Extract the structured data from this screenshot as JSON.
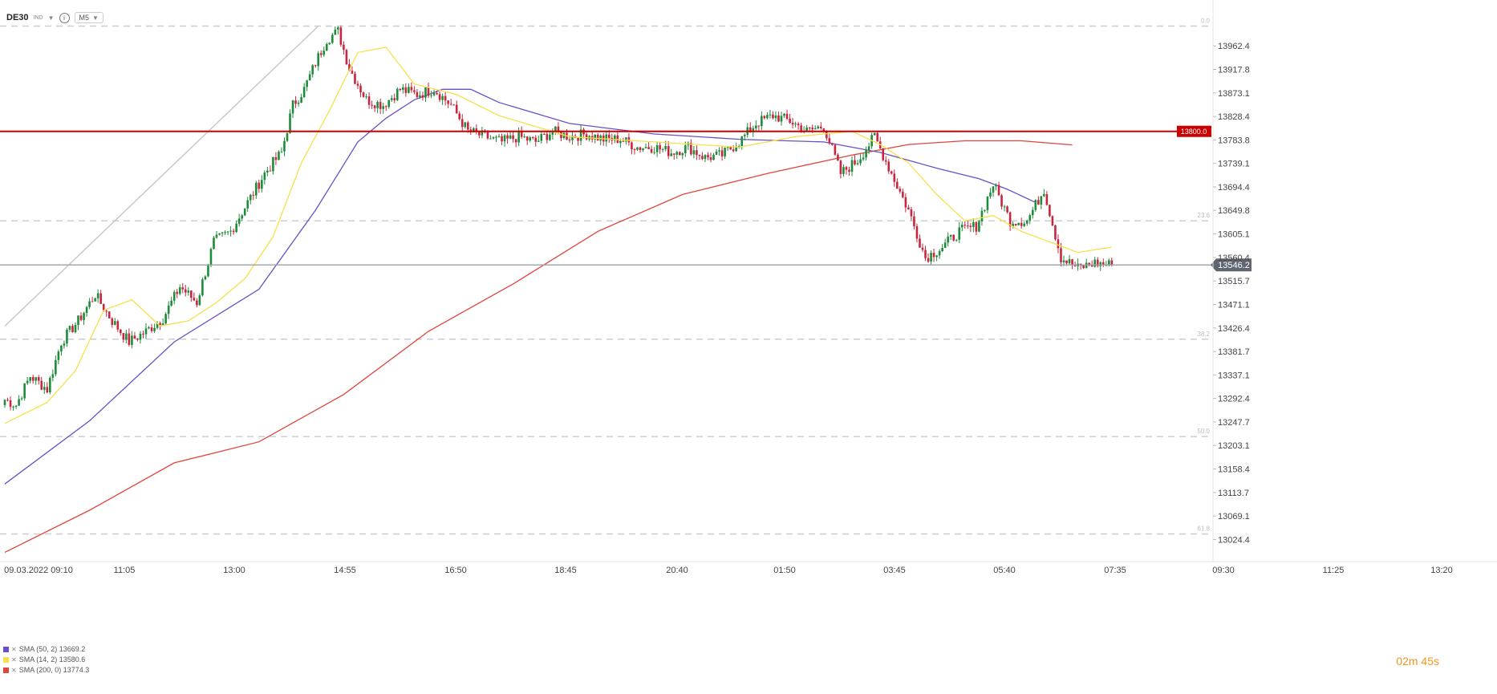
{
  "toolbar": {
    "symbol": "DE30",
    "market": "IND",
    "timeframe": "M5"
  },
  "legend": [
    {
      "label": "SMA (50, 2) 13669.2",
      "color": "#6a4fc6"
    },
    {
      "label": "SMA (14, 2) 13580.6",
      "color": "#f7e04a"
    },
    {
      "label": "SMA (200, 0) 13774.3",
      "color": "#e0443c"
    }
  ],
  "timer": {
    "minutes": "02",
    "m": "m",
    "seconds": "45",
    "s": "s"
  },
  "chart_data": {
    "type": "candlestick",
    "ylim": [
      12990,
      14010
    ],
    "y_ticks": [
      "13962.4",
      "13917.8",
      "13873.1",
      "13828.4",
      "13783.8",
      "13739.1",
      "13694.4",
      "13649.8",
      "13605.1",
      "13560.4",
      "13515.7",
      "13471.1",
      "13426.4",
      "13381.7",
      "13337.1",
      "13292.4",
      "13247.7",
      "13203.1",
      "13158.4",
      "13113.7",
      "13069.1",
      "13024.4"
    ],
    "x_ticks": [
      "09.03.2022  09:10",
      "11:05",
      "13:00",
      "14:55",
      "16:50",
      "18:45",
      "20:40",
      "01:50",
      "03:45",
      "05:40",
      "07:35",
      "09:30",
      "11:25",
      "13:20"
    ],
    "fib_levels": [
      {
        "label": "0.0",
        "value": 14000
      },
      {
        "label": "23.6",
        "value": 13630
      },
      {
        "label": "38.2",
        "value": 13405
      },
      {
        "label": "50.0",
        "value": 13220
      },
      {
        "label": "61.8",
        "value": 13035
      }
    ],
    "horizontal_level": {
      "label": "13800.0",
      "value": 13800,
      "color": "#cc0000"
    },
    "current_price": {
      "label": "13546.2",
      "value": 13546.2
    },
    "trend_line": [
      {
        "i": 0,
        "v": 13430
      },
      {
        "i": 111,
        "v": 14000
      }
    ],
    "candle_colors": {
      "up": "#1e8c3a",
      "down": "#c8263e"
    },
    "close_keys": [
      [
        0,
        13290
      ],
      [
        4,
        13280
      ],
      [
        9,
        13335
      ],
      [
        15,
        13310
      ],
      [
        20,
        13400
      ],
      [
        26,
        13440
      ],
      [
        32,
        13490
      ],
      [
        38,
        13440
      ],
      [
        44,
        13400
      ],
      [
        50,
        13420
      ],
      [
        56,
        13445
      ],
      [
        62,
        13505
      ],
      [
        68,
        13475
      ],
      [
        74,
        13590
      ],
      [
        80,
        13610
      ],
      [
        86,
        13665
      ],
      [
        92,
        13720
      ],
      [
        98,
        13760
      ],
      [
        102,
        13850
      ],
      [
        106,
        13880
      ],
      [
        110,
        13930
      ],
      [
        114,
        13975
      ],
      [
        118,
        13990
      ],
      [
        122,
        13920
      ],
      [
        128,
        13860
      ],
      [
        134,
        13850
      ],
      [
        140,
        13880
      ],
      [
        146,
        13870
      ],
      [
        152,
        13880
      ],
      [
        158,
        13850
      ],
      [
        164,
        13800
      ],
      [
        170,
        13790
      ],
      [
        176,
        13780
      ],
      [
        182,
        13790
      ],
      [
        188,
        13780
      ],
      [
        194,
        13800
      ],
      [
        200,
        13790
      ],
      [
        206,
        13795
      ],
      [
        212,
        13785
      ],
      [
        218,
        13785
      ],
      [
        224,
        13770
      ],
      [
        230,
        13770
      ],
      [
        236,
        13760
      ],
      [
        242,
        13770
      ],
      [
        248,
        13750
      ],
      [
        254,
        13755
      ],
      [
        260,
        13780
      ],
      [
        266,
        13815
      ],
      [
        272,
        13830
      ],
      [
        278,
        13820
      ],
      [
        284,
        13800
      ],
      [
        290,
        13810
      ],
      [
        296,
        13720
      ],
      [
        302,
        13745
      ],
      [
        308,
        13790
      ],
      [
        314,
        13720
      ],
      [
        320,
        13650
      ],
      [
        326,
        13560
      ],
      [
        332,
        13580
      ],
      [
        338,
        13610
      ],
      [
        344,
        13620
      ],
      [
        350,
        13700
      ],
      [
        356,
        13630
      ],
      [
        362,
        13630
      ],
      [
        368,
        13690
      ],
      [
        374,
        13560
      ],
      [
        380,
        13540
      ],
      [
        386,
        13550
      ],
      [
        392,
        13546.2
      ]
    ],
    "series": [
      {
        "name": "SMA (50, 2) 13669.2",
        "color": "#6a4fc6",
        "points": [
          [
            0,
            13130
          ],
          [
            30,
            13250
          ],
          [
            60,
            13400
          ],
          [
            90,
            13500
          ],
          [
            110,
            13650
          ],
          [
            125,
            13780
          ],
          [
            135,
            13825
          ],
          [
            145,
            13860
          ],
          [
            155,
            13880
          ],
          [
            165,
            13880
          ],
          [
            175,
            13855
          ],
          [
            200,
            13815
          ],
          [
            230,
            13795
          ],
          [
            260,
            13785
          ],
          [
            290,
            13780
          ],
          [
            310,
            13760
          ],
          [
            330,
            13730
          ],
          [
            345,
            13710
          ],
          [
            355,
            13690
          ],
          [
            365,
            13665
          ]
        ]
      },
      {
        "name": "SMA (14, 2) 13580.6",
        "color": "#f7e04a",
        "points": [
          [
            0,
            13245
          ],
          [
            15,
            13285
          ],
          [
            25,
            13345
          ],
          [
            35,
            13460
          ],
          [
            45,
            13480
          ],
          [
            55,
            13430
          ],
          [
            65,
            13440
          ],
          [
            75,
            13475
          ],
          [
            85,
            13520
          ],
          [
            95,
            13600
          ],
          [
            105,
            13740
          ],
          [
            115,
            13840
          ],
          [
            125,
            13950
          ],
          [
            135,
            13960
          ],
          [
            145,
            13890
          ],
          [
            160,
            13870
          ],
          [
            175,
            13830
          ],
          [
            200,
            13790
          ],
          [
            230,
            13780
          ],
          [
            260,
            13770
          ],
          [
            280,
            13790
          ],
          [
            300,
            13800
          ],
          [
            310,
            13775
          ],
          [
            320,
            13740
          ],
          [
            330,
            13680
          ],
          [
            340,
            13630
          ],
          [
            350,
            13640
          ],
          [
            360,
            13610
          ],
          [
            370,
            13590
          ],
          [
            380,
            13570
          ],
          [
            392,
            13580
          ]
        ]
      },
      {
        "name": "SMA (200, 0) 13774.3",
        "color": "#e0443c",
        "points": [
          [
            0,
            13000
          ],
          [
            30,
            13080
          ],
          [
            60,
            13170
          ],
          [
            90,
            13210
          ],
          [
            120,
            13300
          ],
          [
            150,
            13420
          ],
          [
            180,
            13510
          ],
          [
            210,
            13610
          ],
          [
            240,
            13680
          ],
          [
            270,
            13720
          ],
          [
            300,
            13755
          ],
          [
            320,
            13775
          ],
          [
            340,
            13782
          ],
          [
            360,
            13782
          ],
          [
            378,
            13774.3
          ]
        ]
      }
    ]
  }
}
